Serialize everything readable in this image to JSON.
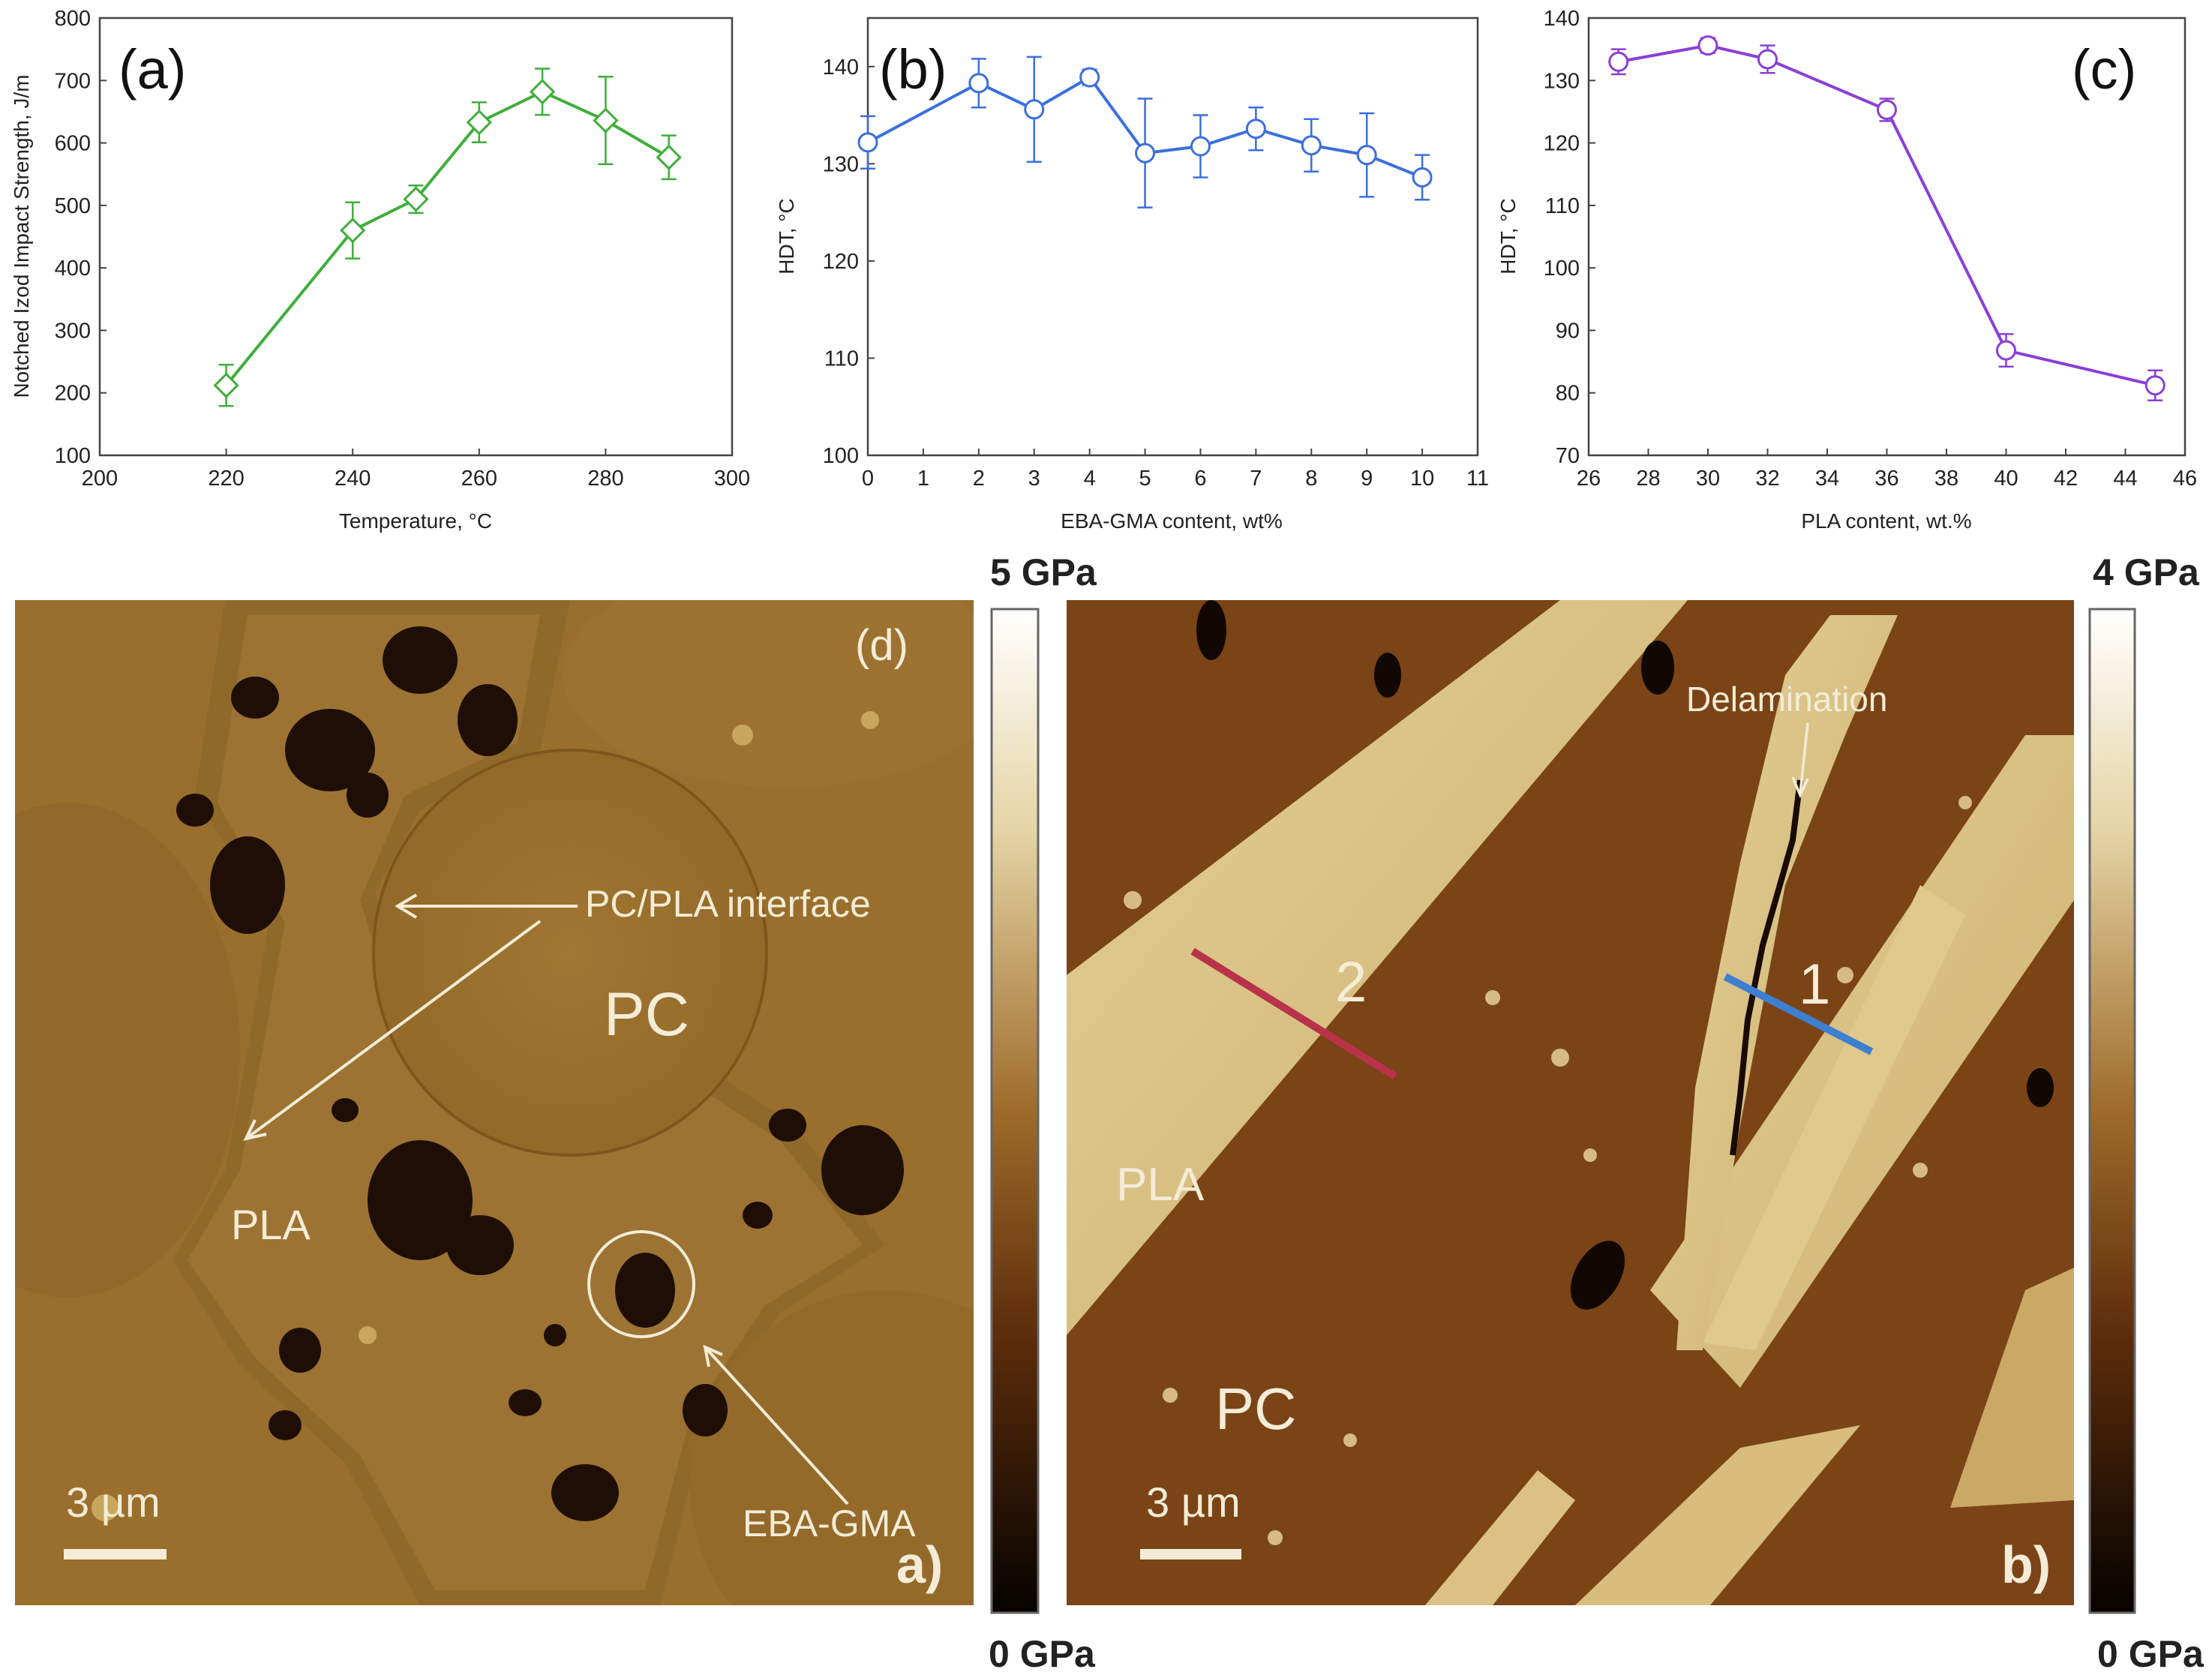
{
  "chart_data": [
    {
      "type": "line",
      "panel": "(a)",
      "xlabel": "Temperature, °C",
      "ylabel": "Notched Izod Impact Strength, J/m",
      "xlim": [
        200,
        300
      ],
      "ylim": [
        100,
        800
      ],
      "xticks": [
        200,
        220,
        240,
        260,
        280,
        300
      ],
      "yticks": [
        100,
        200,
        300,
        400,
        500,
        600,
        700,
        800
      ],
      "color": "#3fae3a",
      "marker": "diamond",
      "x": [
        220,
        240,
        250,
        260,
        270,
        280,
        290
      ],
      "y": [
        212,
        460,
        510,
        633,
        682,
        636,
        577
      ],
      "yerr": [
        33,
        45,
        22,
        32,
        37,
        70,
        35
      ]
    },
    {
      "type": "line",
      "panel": "(b)",
      "xlabel": "EBA-GMA content, wt%",
      "ylabel": "HDT, °C",
      "xlim": [
        0,
        11
      ],
      "ylim": [
        100,
        145
      ],
      "xticks": [
        0,
        1,
        2,
        3,
        4,
        5,
        6,
        7,
        8,
        9,
        10,
        11
      ],
      "yticks": [
        100,
        110,
        120,
        130,
        140
      ],
      "color": "#3b6fdd",
      "marker": "circle",
      "x": [
        0,
        2,
        3,
        4,
        5,
        6,
        7,
        8,
        9,
        10
      ],
      "y": [
        132.2,
        138.3,
        135.6,
        138.9,
        131.1,
        131.8,
        133.6,
        131.9,
        130.9,
        128.6
      ],
      "yerr": [
        2.7,
        2.5,
        5.4,
        0.8,
        5.6,
        3.2,
        2.2,
        2.7,
        4.3,
        2.3
      ]
    },
    {
      "type": "line",
      "panel": "(c)",
      "xlabel": "PLA content, wt.%",
      "ylabel": "HDT, °C",
      "xlim": [
        26,
        46
      ],
      "ylim": [
        70,
        140
      ],
      "xticks": [
        26,
        28,
        30,
        32,
        34,
        36,
        38,
        40,
        42,
        44,
        46
      ],
      "yticks": [
        70,
        80,
        90,
        100,
        110,
        120,
        130,
        140
      ],
      "color": "#8a3fd6",
      "marker": "circle",
      "x": [
        27,
        30,
        32,
        36,
        40,
        45
      ],
      "y": [
        133.0,
        135.6,
        133.4,
        125.3,
        86.8,
        81.2
      ],
      "yerr": [
        2.0,
        1.2,
        2.2,
        1.8,
        2.6,
        2.4
      ]
    }
  ],
  "micrographs": {
    "left": {
      "panel_label": "(d)",
      "corner_label": "a)",
      "scalebar": "3 µm",
      "labels": {
        "interface": "PC/PLA interface",
        "pc": "PC",
        "pla": "PLA",
        "eba": "EBA-GMA"
      },
      "colorbar": {
        "max": "5 GPa",
        "min": "0 GPa"
      }
    },
    "right": {
      "corner_label": "b)",
      "scalebar": "3 µm",
      "labels": {
        "delamination": "Delamination",
        "pc": "PC",
        "pla": "PLA",
        "line1": "1",
        "line2": "2"
      },
      "colorbar": {
        "max": "4 GPa",
        "min": "0 GPa"
      }
    }
  }
}
